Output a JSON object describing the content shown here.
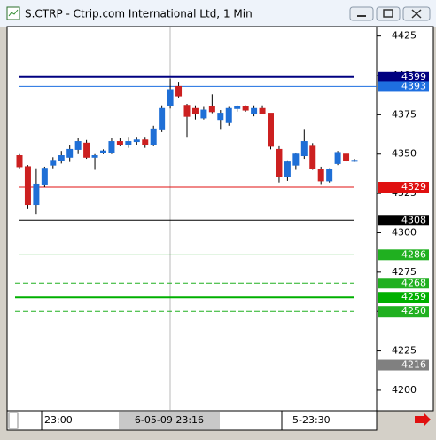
{
  "window_title": "S.CTRP - Ctrip.com International Ltd, 1 Min",
  "chart_data": {
    "type": "candlestick",
    "ylim": [
      4187,
      4431
    ],
    "yticks": [
      4200,
      4225,
      4250,
      4275,
      4300,
      4325,
      4350,
      4375,
      4400,
      4425
    ],
    "up_color": "#1f6fd6",
    "down_color": "#cc2020",
    "x_labels": [
      "23:00",
      "6-05-09 23:16",
      "5-23:30"
    ],
    "open": [
      4349,
      4342,
      4318,
      4331,
      4343,
      4346,
      4348,
      4353,
      4357,
      4348,
      4351,
      4351,
      4358,
      4356,
      4358,
      4359,
      4356,
      4366,
      4381,
      4393,
      4381,
      4379,
      4373,
      4380,
      4372,
      4370,
      4379,
      4380,
      4376,
      4379,
      4376,
      4353,
      4336,
      4343,
      4349,
      4355,
      4340,
      4333,
      4344,
      4350,
      4346
    ],
    "high": [
      4350,
      4343,
      4341,
      4342,
      4348,
      4352,
      4356,
      4360,
      4359,
      4350,
      4353,
      4360,
      4360,
      4361,
      4361,
      4361,
      4368,
      4381,
      4398,
      4396,
      4382,
      4381,
      4380,
      4388,
      4378,
      4380,
      4381,
      4381,
      4381,
      4381,
      4376,
      4355,
      4346,
      4351,
      4366,
      4357,
      4342,
      4341,
      4352,
      4351,
      4347
    ],
    "low": [
      4341,
      4315,
      4312,
      4329,
      4341,
      4344,
      4345,
      4350,
      4347,
      4340,
      4350,
      4350,
      4355,
      4354,
      4356,
      4354,
      4355,
      4364,
      4379,
      4386,
      4361,
      4372,
      4372,
      4376,
      4366,
      4368,
      4377,
      4377,
      4374,
      4376,
      4353,
      4332,
      4333,
      4340,
      4347,
      4340,
      4331,
      4332,
      4343,
      4345,
      4345
    ],
    "close": [
      4342,
      4318,
      4331,
      4341,
      4346,
      4349,
      4353,
      4358,
      4348,
      4349,
      4352,
      4358,
      4356,
      4358,
      4359,
      4356,
      4366,
      4379,
      4391,
      4387,
      4374,
      4376,
      4378,
      4377,
      4376,
      4379,
      4380,
      4378,
      4379,
      4376,
      4355,
      4336,
      4345,
      4350,
      4358,
      4341,
      4333,
      4340,
      4351,
      4346,
      4346
    ],
    "levels": [
      {
        "value": 4399,
        "color": "#000080"
      },
      {
        "value": 4393,
        "color": "#1e6fe0"
      },
      {
        "value": 4329,
        "color": "#e01010"
      },
      {
        "value": 4308,
        "color": "#000000"
      },
      {
        "value": 4286,
        "color": "#20b020"
      },
      {
        "value": 4268,
        "color": "#20b020"
      },
      {
        "value": 4259,
        "color": "#00b000"
      },
      {
        "value": 4250,
        "color": "#20b020"
      },
      {
        "value": 4216,
        "color": "#808080"
      }
    ]
  }
}
